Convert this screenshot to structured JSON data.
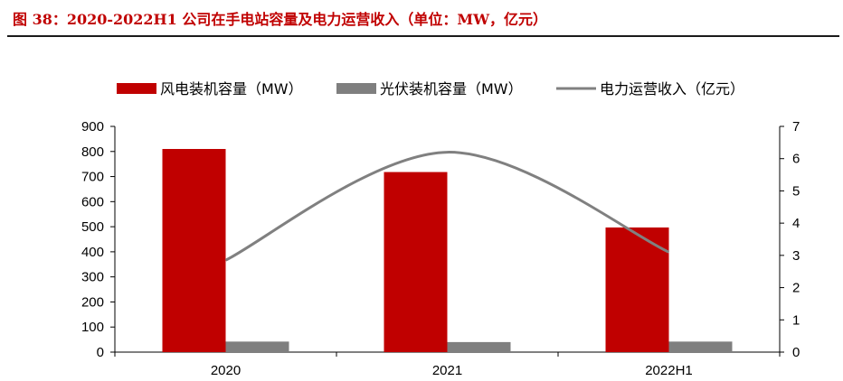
{
  "title": "图 38：2020-2022H1 公司在手电站容量及电力运营收入（单位：MW，亿元）",
  "colors": {
    "wind": "#c00000",
    "solar": "#7f7f7f",
    "revenue": "#808080",
    "title": "#c00000"
  },
  "chart_data": {
    "type": "bar",
    "categories": [
      "2020",
      "2021",
      "2022H1"
    ],
    "series": [
      {
        "name": "风电装机容量（MW）",
        "kind": "bar",
        "axis": "left",
        "values": [
          810,
          718,
          497
        ]
      },
      {
        "name": "光伏装机容量（MW）",
        "kind": "bar",
        "axis": "left",
        "values": [
          42,
          40,
          42
        ]
      },
      {
        "name": "电力运营收入（亿元）",
        "kind": "line",
        "axis": "right",
        "values": [
          2.85,
          6.2,
          3.1
        ]
      }
    ],
    "y_left": {
      "min": 0,
      "max": 900,
      "step": 100
    },
    "y_right": {
      "min": 0,
      "max": 7,
      "step": 1
    },
    "grid": false,
    "legend_position": "top"
  }
}
